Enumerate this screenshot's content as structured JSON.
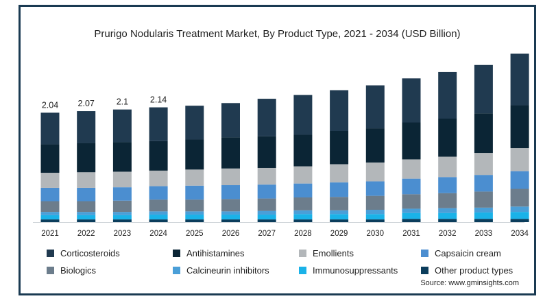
{
  "chart_data": {
    "type": "bar",
    "stacked": true,
    "title": "Prurigo Nodularis Treatment Market, By Product Type, 2021 - 2034 (USD Billion)",
    "xlabel": "",
    "ylabel": "",
    "ylim": [
      0,
      3.4
    ],
    "grid": false,
    "legend_position": "bottom",
    "categories": [
      "2021",
      "2022",
      "2023",
      "2024",
      "2025",
      "2026",
      "2027",
      "2028",
      "2029",
      "2030",
      "2031",
      "2032",
      "2033",
      "2034"
    ],
    "data_labels": [
      "2.04",
      "2.07",
      "2.1",
      "2.14",
      "",
      "",
      "",
      "",
      "",
      "",
      "",
      "",
      "",
      ""
    ],
    "series": [
      {
        "name": "Other product types",
        "color": "#0b3d5c",
        "values": [
          0.05,
          0.05,
          0.05,
          0.05,
          0.05,
          0.05,
          0.05,
          0.05,
          0.05,
          0.05,
          0.06,
          0.06,
          0.06,
          0.06
        ]
      },
      {
        "name": "Immunosuppressants",
        "color": "#1ab2e8",
        "values": [
          0.08,
          0.08,
          0.08,
          0.09,
          0.09,
          0.09,
          0.09,
          0.1,
          0.1,
          0.1,
          0.11,
          0.11,
          0.12,
          0.13
        ]
      },
      {
        "name": "Calcineurin inhibitors",
        "color": "#4a9fd8",
        "values": [
          0.06,
          0.06,
          0.06,
          0.06,
          0.06,
          0.06,
          0.07,
          0.07,
          0.07,
          0.08,
          0.08,
          0.09,
          0.09,
          0.1
        ]
      },
      {
        "name": "Biologics",
        "color": "#6c7d8c",
        "values": [
          0.2,
          0.2,
          0.21,
          0.22,
          0.22,
          0.23,
          0.23,
          0.24,
          0.25,
          0.26,
          0.27,
          0.28,
          0.3,
          0.33
        ]
      },
      {
        "name": "Capsaicin cream",
        "color": "#4b8ed0",
        "values": [
          0.25,
          0.25,
          0.25,
          0.25,
          0.26,
          0.26,
          0.26,
          0.26,
          0.27,
          0.27,
          0.29,
          0.3,
          0.31,
          0.33
        ]
      },
      {
        "name": "Emollients",
        "color": "#b3b7ba",
        "values": [
          0.28,
          0.29,
          0.29,
          0.29,
          0.3,
          0.31,
          0.31,
          0.32,
          0.34,
          0.35,
          0.36,
          0.38,
          0.41,
          0.43
        ]
      },
      {
        "name": "Antihistamines",
        "color": "#0b2535",
        "values": [
          0.53,
          0.54,
          0.55,
          0.55,
          0.56,
          0.58,
          0.59,
          0.59,
          0.62,
          0.64,
          0.69,
          0.71,
          0.74,
          0.8
        ]
      },
      {
        "name": "Corticosteroids",
        "color": "#203a50",
        "values": [
          0.59,
          0.6,
          0.61,
          0.63,
          0.63,
          0.64,
          0.7,
          0.74,
          0.76,
          0.8,
          0.82,
          0.87,
          0.9,
          0.96
        ]
      }
    ],
    "legend": [
      {
        "name": "Corticosteroids",
        "color": "#203a50"
      },
      {
        "name": "Antihistamines",
        "color": "#0b2535"
      },
      {
        "name": "Emollients",
        "color": "#b3b7ba"
      },
      {
        "name": "Capsaicin cream",
        "color": "#4b8ed0"
      },
      {
        "name": "Biologics",
        "color": "#6c7d8c"
      },
      {
        "name": "Calcineurin inhibitors",
        "color": "#4a9fd8"
      },
      {
        "name": "Immunosuppressants",
        "color": "#1ab2e8"
      },
      {
        "name": "Other product types",
        "color": "#0b3d5c"
      }
    ]
  },
  "source": "Source: www.gminsights.com"
}
